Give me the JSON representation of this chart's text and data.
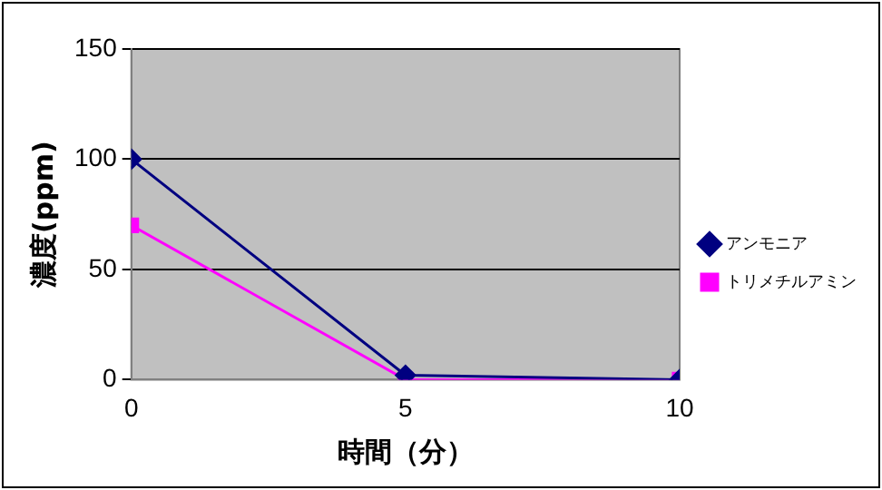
{
  "chart_data": {
    "type": "line",
    "xlabel": "時間（分）",
    "ylabel": "濃度(ppm)",
    "x": [
      0,
      5,
      10
    ],
    "xlim": [
      0,
      10
    ],
    "xticks": [
      0,
      5,
      10
    ],
    "ylim": [
      0,
      150
    ],
    "yticks": [
      0,
      50,
      100,
      150
    ],
    "grid": "y",
    "legend": "right",
    "line_style": "solid",
    "series": [
      {
        "name": "アンモニア",
        "color": "#000080",
        "marker": "diamond",
        "values": [
          100,
          2,
          0
        ]
      },
      {
        "name": "トリメチルアミン",
        "color": "#ff00ff",
        "marker": "square",
        "values": [
          70,
          0,
          0
        ]
      }
    ]
  }
}
